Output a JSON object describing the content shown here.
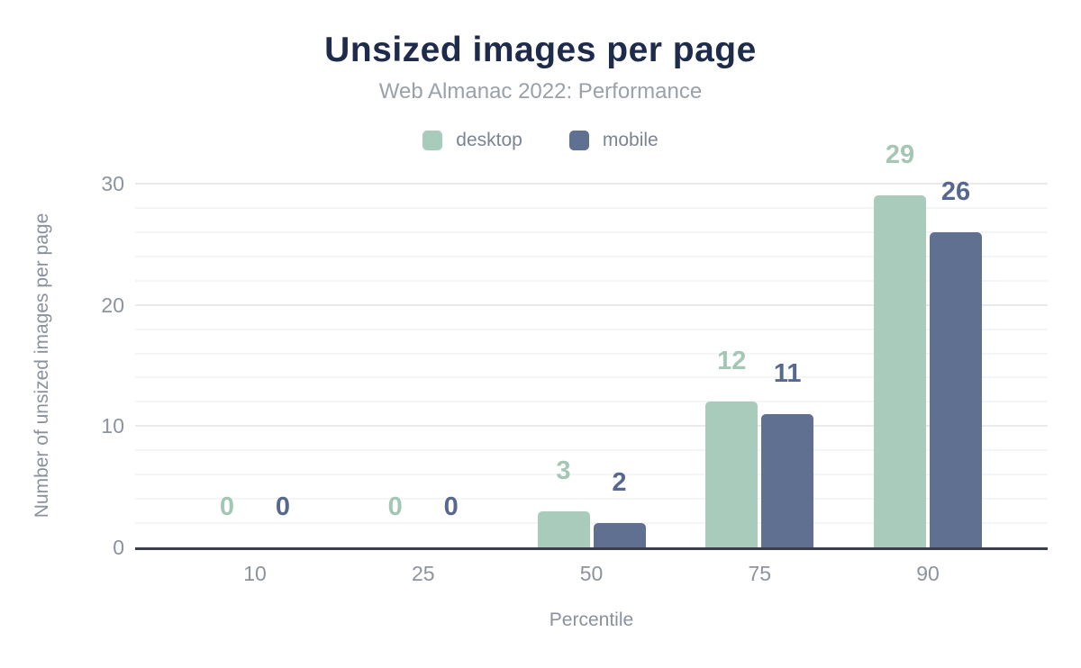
{
  "header": {
    "title": "Unsized images per page",
    "subtitle": "Web Almanac 2022: Performance"
  },
  "legend": [
    {
      "label": "desktop",
      "color": "#a9cbbb"
    },
    {
      "label": "mobile",
      "color": "#5f7090"
    }
  ],
  "colors": {
    "title": "#1e2b4a",
    "subtitle": "#9ba1a9",
    "legend_text": "#7c8392",
    "tick_text": "#8d939e",
    "axis_title_text": "#8b919c",
    "axis_line": "#3a3f49",
    "grid_major": "#e9eaec",
    "grid_minor": "#f4f5f6"
  },
  "chart_data": {
    "type": "bar",
    "title": "Unsized images per page",
    "subtitle": "Web Almanac 2022: Performance",
    "categories": [
      "10",
      "25",
      "50",
      "75",
      "90"
    ],
    "series": [
      {
        "name": "desktop",
        "color": "#a9cbbb",
        "label_color": "#a3c7b4",
        "values": [
          0,
          0,
          3,
          12,
          29
        ]
      },
      {
        "name": "mobile",
        "color": "#5f7090",
        "label_color": "#57688e",
        "values": [
          0,
          0,
          2,
          11,
          26
        ]
      }
    ],
    "data_labels": true,
    "xlabel": "Percentile",
    "ylabel": "Number of unsized images per page",
    "ylim": [
      0,
      30
    ],
    "yticks": [
      0,
      10,
      20,
      30
    ],
    "minor_grid_step": 2,
    "grid": "on",
    "legend_position": "top"
  }
}
